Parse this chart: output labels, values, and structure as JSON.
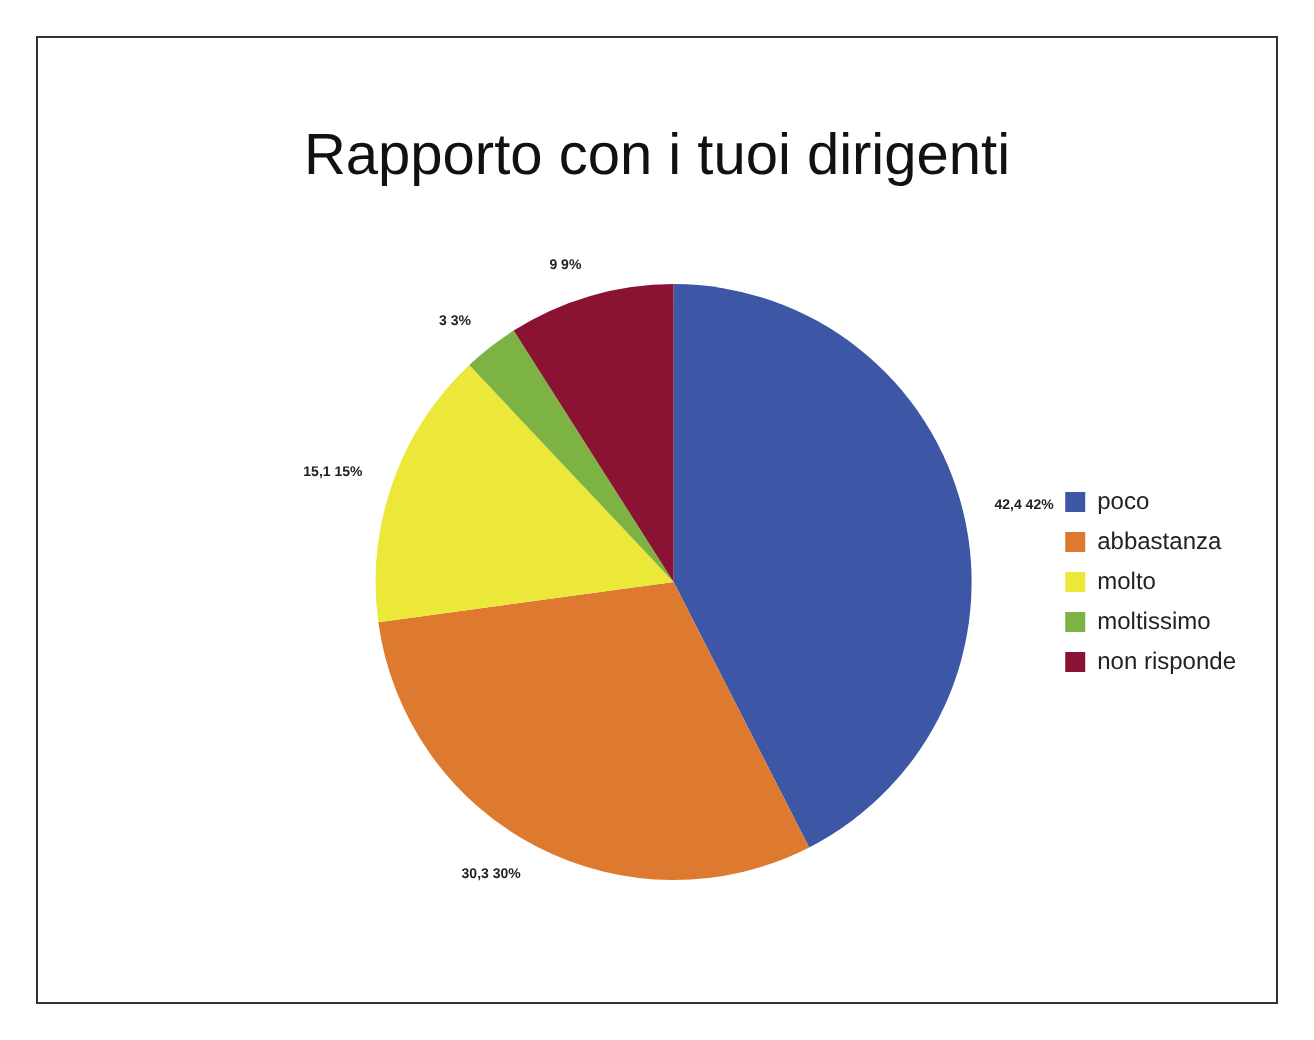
{
  "chart_data": {
    "type": "pie",
    "title": "Rapporto con i tuoi dirigenti",
    "categories": [
      "poco",
      "abbastanza",
      "molto",
      "moltissimo",
      "non risponde"
    ],
    "values": [
      42.4,
      30.3,
      15.1,
      3,
      9
    ],
    "colors": [
      "#3d56a6",
      "#dd7a30",
      "#ece83a",
      "#7cb342",
      "#8a1232"
    ],
    "value_labels": [
      "42,4 42%",
      "30,3 30%",
      "15,1 15%",
      "3 3%",
      "9 9%"
    ],
    "legend": "right"
  }
}
